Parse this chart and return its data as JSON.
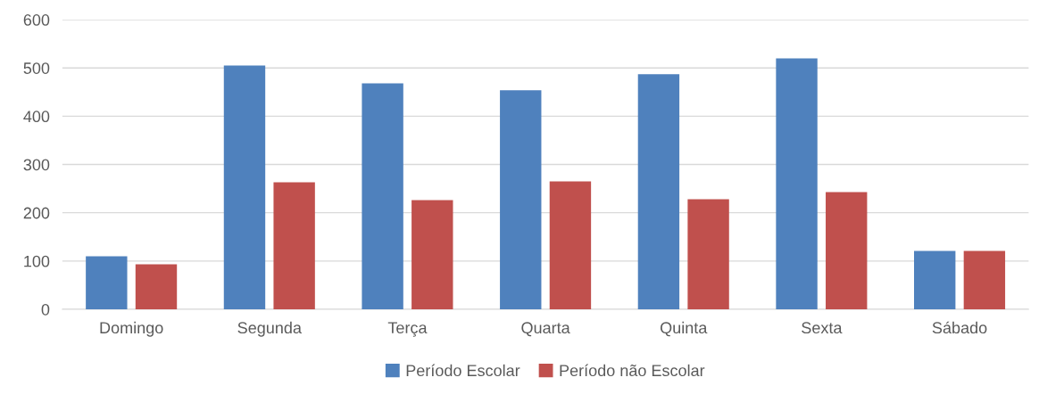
{
  "chart_data": {
    "type": "bar",
    "categories": [
      "Domingo",
      "Segunda",
      "Terça",
      "Quarta",
      "Quinta",
      "Sexta",
      "Sábado"
    ],
    "series": [
      {
        "name": "Período Escolar",
        "color": "#4f81bd",
        "values": [
          110,
          505,
          468,
          454,
          487,
          520,
          121
        ]
      },
      {
        "name": "Período não Escolar",
        "color": "#c0504d",
        "values": [
          93,
          263,
          226,
          265,
          228,
          243,
          121
        ]
      }
    ],
    "ylim": [
      0,
      600
    ],
    "yticks": [
      0,
      100,
      200,
      300,
      400,
      500,
      600
    ],
    "grid": "y",
    "legend": "bottom"
  }
}
